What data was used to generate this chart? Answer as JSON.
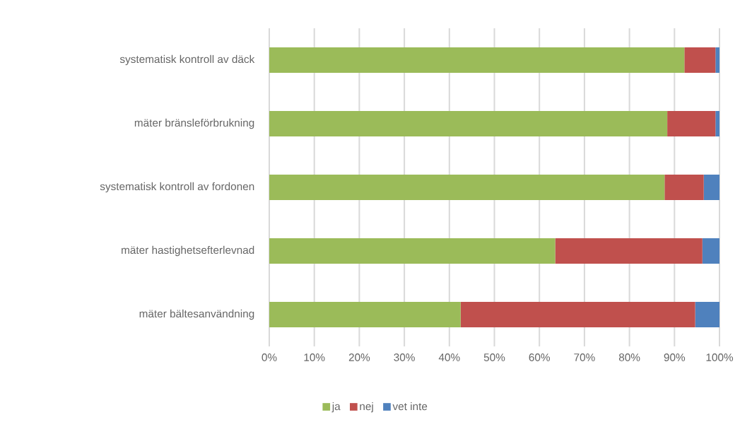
{
  "chart_data": {
    "type": "bar",
    "orientation": "horizontal",
    "stacked": true,
    "categories": [
      "systematisk kontroll av däck",
      "mäter bränsleförbrukning",
      "systematisk kontroll av fordonen",
      "mäter hastighetsefterlevnad",
      "mäter bältesanvändning"
    ],
    "series": [
      {
        "name": "ja",
        "color": "#9bbb59",
        "values": [
          92.2,
          88.4,
          87.8,
          63.5,
          42.5
        ]
      },
      {
        "name": "nej",
        "color": "#c0504d",
        "values": [
          6.9,
          10.7,
          8.7,
          32.7,
          52.1
        ]
      },
      {
        "name": "vet inte",
        "color": "#4f81bd",
        "values": [
          0.9,
          0.9,
          3.5,
          3.8,
          5.4
        ]
      }
    ],
    "xlim": [
      0,
      100
    ],
    "xticks": [
      {
        "value": 0,
        "label": "0%"
      },
      {
        "value": 10,
        "label": "10%"
      },
      {
        "value": 20,
        "label": "20%"
      },
      {
        "value": 30,
        "label": "30%"
      },
      {
        "value": 40,
        "label": "40%"
      },
      {
        "value": 50,
        "label": "50%"
      },
      {
        "value": 60,
        "label": "60%"
      },
      {
        "value": 70,
        "label": "70%"
      },
      {
        "value": 80,
        "label": "80%"
      },
      {
        "value": 90,
        "label": "90%"
      },
      {
        "value": 100,
        "label": "100%"
      }
    ],
    "grid": "x",
    "legend": "bottom"
  }
}
